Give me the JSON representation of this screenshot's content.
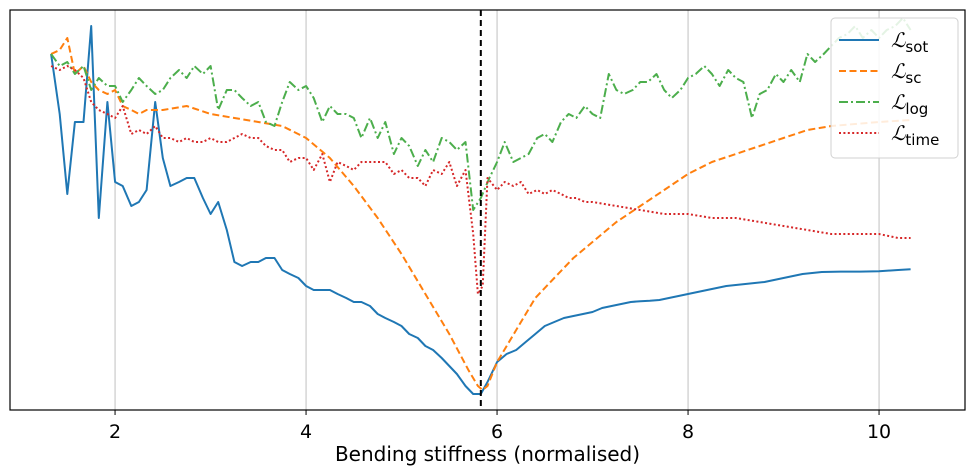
{
  "chart_data": {
    "type": "line",
    "title": "",
    "xlabel": "Bending stiffness (normalised)",
    "ylabel": "",
    "xlim": [
      0.9,
      10.9
    ],
    "ylim": [
      0,
      1
    ],
    "xticks": [
      2,
      4,
      6,
      8,
      10
    ],
    "grid": "vertical",
    "legend_position": "top-right",
    "vline": {
      "x": 5.83,
      "style": "dashed",
      "color": "#000000"
    },
    "series": [
      {
        "name": "L_sot",
        "legend_main": "ℒ",
        "legend_sub": "sot",
        "color": "#1f77b4",
        "dash": "solid",
        "x": [
          1.33,
          1.42,
          1.5,
          1.58,
          1.67,
          1.75,
          1.83,
          1.92,
          2.0,
          2.08,
          2.17,
          2.25,
          2.33,
          2.42,
          2.5,
          2.58,
          2.67,
          2.75,
          2.83,
          2.92,
          3.0,
          3.08,
          3.17,
          3.25,
          3.33,
          3.42,
          3.5,
          3.58,
          3.67,
          3.75,
          3.83,
          3.92,
          4.0,
          4.08,
          4.17,
          4.25,
          4.33,
          4.42,
          4.5,
          4.58,
          4.67,
          4.75,
          4.83,
          4.92,
          5.0,
          5.08,
          5.17,
          5.25,
          5.33,
          5.42,
          5.5,
          5.58,
          5.67,
          5.75,
          5.8,
          5.83,
          5.9,
          6.0,
          6.1,
          6.2,
          6.3,
          6.4,
          6.5,
          6.6,
          6.7,
          6.8,
          6.9,
          7.0,
          7.1,
          7.2,
          7.3,
          7.4,
          7.5,
          7.6,
          7.7,
          7.8,
          7.9,
          8.0,
          8.2,
          8.4,
          8.6,
          8.8,
          9.0,
          9.2,
          9.4,
          9.6,
          9.8,
          10.0,
          10.2,
          10.33
        ],
        "values": [
          0.89,
          0.74,
          0.54,
          0.72,
          0.72,
          0.96,
          0.48,
          0.77,
          0.57,
          0.56,
          0.51,
          0.52,
          0.55,
          0.77,
          0.63,
          0.56,
          0.57,
          0.58,
          0.58,
          0.53,
          0.49,
          0.52,
          0.45,
          0.37,
          0.36,
          0.37,
          0.37,
          0.38,
          0.38,
          0.35,
          0.34,
          0.33,
          0.31,
          0.3,
          0.3,
          0.3,
          0.29,
          0.28,
          0.27,
          0.27,
          0.26,
          0.24,
          0.23,
          0.22,
          0.21,
          0.19,
          0.18,
          0.16,
          0.15,
          0.13,
          0.11,
          0.09,
          0.06,
          0.04,
          0.04,
          0.04,
          0.07,
          0.12,
          0.14,
          0.15,
          0.17,
          0.19,
          0.21,
          0.22,
          0.23,
          0.235,
          0.24,
          0.245,
          0.255,
          0.26,
          0.265,
          0.27,
          0.272,
          0.273,
          0.275,
          0.28,
          0.285,
          0.29,
          0.3,
          0.31,
          0.315,
          0.32,
          0.33,
          0.34,
          0.345,
          0.346,
          0.346,
          0.347,
          0.35,
          0.352
        ]
      },
      {
        "name": "L_sc",
        "legend_main": "ℒ",
        "legend_sub": "sc",
        "color": "#ff7f0e",
        "dash": "dashed",
        "x": [
          1.33,
          1.42,
          1.5,
          1.58,
          1.67,
          1.75,
          1.83,
          1.92,
          2.0,
          2.08,
          2.17,
          2.25,
          2.33,
          2.5,
          2.75,
          3.0,
          3.25,
          3.5,
          3.75,
          4.0,
          4.25,
          4.5,
          4.75,
          5.0,
          5.25,
          5.5,
          5.7,
          5.8,
          5.85,
          5.9,
          6.0,
          6.2,
          6.4,
          6.6,
          6.8,
          7.0,
          7.25,
          7.5,
          7.75,
          8.0,
          8.25,
          8.5,
          8.75,
          9.0,
          9.25,
          9.5,
          9.75,
          10.0,
          10.33
        ],
        "values": [
          0.89,
          0.9,
          0.93,
          0.84,
          0.86,
          0.82,
          0.8,
          0.79,
          0.8,
          0.76,
          0.75,
          0.74,
          0.75,
          0.75,
          0.76,
          0.74,
          0.73,
          0.72,
          0.71,
          0.68,
          0.63,
          0.56,
          0.48,
          0.39,
          0.29,
          0.19,
          0.1,
          0.06,
          0.05,
          0.06,
          0.12,
          0.2,
          0.28,
          0.33,
          0.38,
          0.42,
          0.47,
          0.51,
          0.55,
          0.59,
          0.62,
          0.64,
          0.66,
          0.68,
          0.7,
          0.71,
          0.715,
          0.72,
          0.725
        ]
      },
      {
        "name": "L_log",
        "legend_main": "ℒ",
        "legend_sub": "log",
        "color": "#4cae4c",
        "dash": "dashdot",
        "x": [
          1.33,
          1.42,
          1.5,
          1.58,
          1.67,
          1.75,
          1.83,
          1.92,
          2.0,
          2.08,
          2.17,
          2.25,
          2.33,
          2.42,
          2.5,
          2.58,
          2.67,
          2.75,
          2.83,
          2.92,
          3.0,
          3.08,
          3.17,
          3.25,
          3.33,
          3.42,
          3.5,
          3.58,
          3.67,
          3.75,
          3.83,
          3.92,
          4.0,
          4.08,
          4.17,
          4.25,
          4.33,
          4.42,
          4.5,
          4.58,
          4.67,
          4.75,
          4.83,
          4.92,
          5.0,
          5.08,
          5.17,
          5.25,
          5.33,
          5.42,
          5.5,
          5.58,
          5.67,
          5.75,
          5.83,
          5.92,
          6.0,
          6.08,
          6.17,
          6.25,
          6.33,
          6.42,
          6.5,
          6.58,
          6.67,
          6.75,
          6.83,
          6.92,
          7.0,
          7.08,
          7.17,
          7.25,
          7.33,
          7.42,
          7.5,
          7.58,
          7.67,
          7.75,
          7.83,
          7.92,
          8.0,
          8.08,
          8.17,
          8.25,
          8.33,
          8.42,
          8.5,
          8.58,
          8.67,
          8.75,
          8.83,
          8.92,
          9.0,
          9.08,
          9.17,
          9.25,
          9.33,
          9.42,
          9.5,
          9.58,
          9.67,
          9.75,
          9.83,
          9.92,
          10.0,
          10.08,
          10.17,
          10.25,
          10.33
        ],
        "values": [
          0.89,
          0.86,
          0.87,
          0.84,
          0.86,
          0.8,
          0.83,
          0.81,
          0.81,
          0.77,
          0.8,
          0.83,
          0.81,
          0.79,
          0.8,
          0.83,
          0.85,
          0.83,
          0.86,
          0.84,
          0.86,
          0.75,
          0.8,
          0.8,
          0.78,
          0.76,
          0.77,
          0.72,
          0.71,
          0.77,
          0.82,
          0.8,
          0.81,
          0.78,
          0.72,
          0.76,
          0.74,
          0.74,
          0.73,
          0.68,
          0.73,
          0.68,
          0.72,
          0.64,
          0.68,
          0.66,
          0.61,
          0.65,
          0.62,
          0.68,
          0.67,
          0.65,
          0.67,
          0.5,
          0.53,
          0.58,
          0.62,
          0.67,
          0.62,
          0.63,
          0.64,
          0.68,
          0.69,
          0.67,
          0.72,
          0.74,
          0.73,
          0.76,
          0.74,
          0.73,
          0.84,
          0.8,
          0.79,
          0.8,
          0.82,
          0.82,
          0.84,
          0.8,
          0.78,
          0.8,
          0.83,
          0.84,
          0.86,
          0.84,
          0.81,
          0.85,
          0.83,
          0.82,
          0.73,
          0.79,
          0.8,
          0.84,
          0.82,
          0.85,
          0.82,
          0.89,
          0.87,
          0.89,
          0.91,
          0.93,
          0.94,
          0.96,
          0.93,
          0.95,
          0.93,
          0.95,
          0.96,
          0.98,
          0.95
        ]
      },
      {
        "name": "L_time",
        "legend_main": "ℒ",
        "legend_sub": "time",
        "color": "#d62728",
        "dash": "dotted",
        "x": [
          1.33,
          1.42,
          1.5,
          1.58,
          1.67,
          1.75,
          1.83,
          1.92,
          2.0,
          2.08,
          2.17,
          2.25,
          2.33,
          2.42,
          2.5,
          2.58,
          2.67,
          2.75,
          2.83,
          2.92,
          3.0,
          3.08,
          3.17,
          3.25,
          3.33,
          3.42,
          3.5,
          3.58,
          3.67,
          3.75,
          3.83,
          3.92,
          4.0,
          4.08,
          4.17,
          4.25,
          4.33,
          4.42,
          4.5,
          4.58,
          4.67,
          4.75,
          4.83,
          4.92,
          5.0,
          5.08,
          5.17,
          5.25,
          5.33,
          5.42,
          5.5,
          5.58,
          5.67,
          5.75,
          5.8,
          5.85,
          5.9,
          6.0,
          6.08,
          6.17,
          6.25,
          6.33,
          6.42,
          6.5,
          6.58,
          6.67,
          6.75,
          6.83,
          6.92,
          7.0,
          7.25,
          7.5,
          7.75,
          8.0,
          8.25,
          8.5,
          8.75,
          9.0,
          9.25,
          9.5,
          9.75,
          10.0,
          10.2,
          10.33
        ],
        "values": [
          0.86,
          0.85,
          0.86,
          0.85,
          0.83,
          0.77,
          0.75,
          0.74,
          0.73,
          0.76,
          0.69,
          0.7,
          0.69,
          0.71,
          0.68,
          0.68,
          0.67,
          0.68,
          0.67,
          0.67,
          0.68,
          0.67,
          0.67,
          0.68,
          0.69,
          0.68,
          0.68,
          0.66,
          0.65,
          0.65,
          0.62,
          0.63,
          0.63,
          0.6,
          0.64,
          0.57,
          0.62,
          0.61,
          0.6,
          0.62,
          0.62,
          0.62,
          0.62,
          0.59,
          0.6,
          0.58,
          0.58,
          0.56,
          0.6,
          0.59,
          0.62,
          0.56,
          0.6,
          0.44,
          0.29,
          0.31,
          0.58,
          0.55,
          0.57,
          0.56,
          0.57,
          0.54,
          0.55,
          0.54,
          0.55,
          0.54,
          0.53,
          0.53,
          0.52,
          0.52,
          0.51,
          0.5,
          0.49,
          0.49,
          0.48,
          0.48,
          0.47,
          0.46,
          0.45,
          0.44,
          0.44,
          0.44,
          0.43,
          0.43
        ]
      }
    ]
  }
}
